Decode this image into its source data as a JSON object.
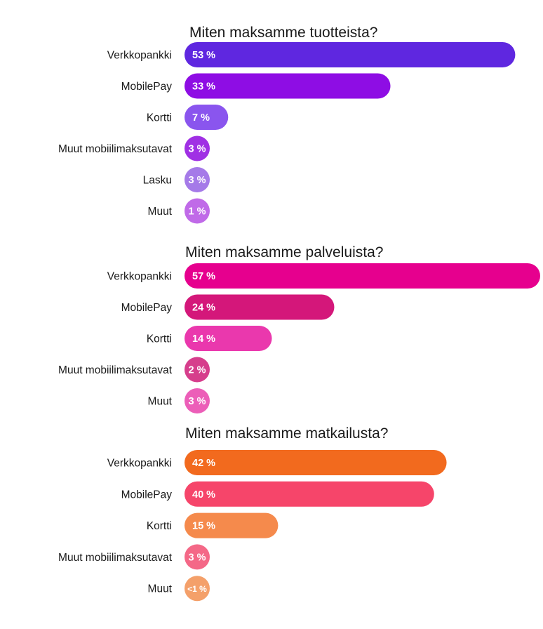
{
  "chart_data": [
    {
      "type": "bar",
      "orientation": "horizontal",
      "title": "Miten maksamme tuotteista?",
      "categories": [
        "Verkkopankki",
        "MobilePay",
        "Kortti",
        "Muut mobiilimaksutavat",
        "Lasku",
        "Muut"
      ],
      "values": [
        53,
        33,
        7,
        3,
        3,
        1
      ],
      "labels": [
        "53 %",
        "33 %",
        "7 %",
        "3 %",
        "3 %",
        "1 %"
      ],
      "colors": [
        "#5f27e0",
        "#8e0de4",
        "#8a55ee",
        "#a030e4",
        "#a57ae8",
        "#c06ae8"
      ],
      "xlim": [
        0,
        57
      ]
    },
    {
      "type": "bar",
      "orientation": "horizontal",
      "title": "Miten maksamme palveluista?",
      "categories": [
        "Verkkopankki",
        "MobilePay",
        "Kortti",
        "Muut mobiilimaksutavat",
        "Muut"
      ],
      "values": [
        57,
        24,
        14,
        2,
        3
      ],
      "labels": [
        "57 %",
        "24 %",
        "14 %",
        "2 %",
        "3 %"
      ],
      "colors": [
        "#e6008e",
        "#d4177a",
        "#ea38ad",
        "#d63e8c",
        "#ec5eb8"
      ],
      "xlim": [
        0,
        57
      ]
    },
    {
      "type": "bar",
      "orientation": "horizontal",
      "title": "Miten maksamme matkailusta?",
      "categories": [
        "Verkkopankki",
        "MobilePay",
        "Kortti",
        "Muut mobiilimaksutavat",
        "Muut"
      ],
      "values": [
        42,
        40,
        15,
        3,
        1
      ],
      "labels": [
        "42 %",
        "40 %",
        "15 %",
        "3 %",
        "<1 %"
      ],
      "colors": [
        "#f26a1e",
        "#f6456a",
        "#f58a4c",
        "#f46887",
        "#f4a06a"
      ],
      "xlim": [
        0,
        57
      ]
    }
  ]
}
